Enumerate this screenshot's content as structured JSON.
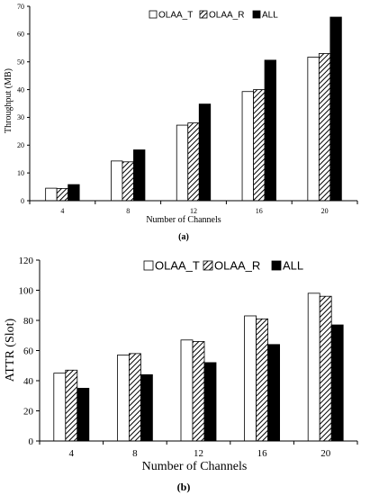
{
  "chart_data": [
    {
      "type": "bar",
      "panel_label": "(a)",
      "categories": [
        "4",
        "8",
        "12",
        "16",
        "20"
      ],
      "series": [
        {
          "name": "OLAA_T",
          "values": [
            4.5,
            14.3,
            27.2,
            39.3,
            51.7
          ],
          "pattern": "white"
        },
        {
          "name": "OLAA_R",
          "values": [
            4.4,
            14.0,
            28.0,
            40.0,
            53.0
          ],
          "pattern": "hatch"
        },
        {
          "name": "ALL",
          "values": [
            5.8,
            18.3,
            34.8,
            50.6,
            66.1
          ],
          "pattern": "black"
        }
      ],
      "xlabel": "Number of Channels",
      "ylabel": "Throughput (MB)",
      "ylim": [
        0,
        70
      ],
      "yticks": [
        "0",
        "10",
        "20",
        "30",
        "40",
        "50",
        "60",
        "70"
      ],
      "legend_placement": "top-center",
      "grid": false
    },
    {
      "type": "bar",
      "panel_label": "(b)",
      "categories": [
        "4",
        "8",
        "12",
        "16",
        "20"
      ],
      "series": [
        {
          "name": "OLAA_T",
          "values": [
            45,
            57,
            67,
            83,
            98
          ],
          "pattern": "white"
        },
        {
          "name": "OLAA_R",
          "values": [
            47,
            58,
            66,
            81,
            96
          ],
          "pattern": "hatch"
        },
        {
          "name": "ALL",
          "values": [
            35,
            44,
            52,
            64,
            77
          ],
          "pattern": "black"
        }
      ],
      "xlabel": "Number of Channels",
      "ylabel": "ATTR (Slot)",
      "ylim": [
        0,
        120
      ],
      "yticks": [
        "0",
        "20",
        "40",
        "60",
        "80",
        "100",
        "120"
      ],
      "legend_placement": "top-center",
      "grid": false
    }
  ]
}
